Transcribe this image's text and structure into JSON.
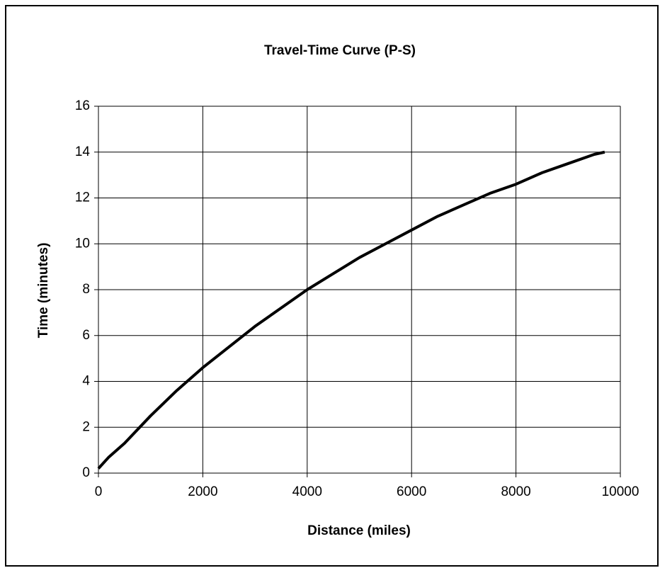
{
  "chart_data": {
    "type": "line",
    "title": "Travel-Time Curve (P-S)",
    "x_label": "Distance (miles)",
    "y_label": "Time (minutes)",
    "x": [
      0,
      200,
      500,
      1000,
      1500,
      2000,
      2500,
      3000,
      3500,
      4000,
      4500,
      5000,
      5500,
      6000,
      6500,
      7000,
      7500,
      8000,
      8500,
      9000,
      9500,
      9700
    ],
    "series": [
      {
        "name": "P-S",
        "color": "#000000",
        "values": [
          0.2,
          0.7,
          1.3,
          2.5,
          3.6,
          4.6,
          5.5,
          6.4,
          7.2,
          8.0,
          8.7,
          9.4,
          10.0,
          10.6,
          11.2,
          11.7,
          12.2,
          12.6,
          13.1,
          13.5,
          13.9,
          14.0
        ]
      }
    ],
    "xlim": [
      0,
      10000
    ],
    "xticks": [
      0,
      2000,
      4000,
      6000,
      8000,
      10000
    ],
    "ylim": [
      0,
      16
    ],
    "yticks": [
      0,
      2,
      4,
      6,
      8,
      10,
      12,
      14,
      16
    ],
    "grid": true
  }
}
